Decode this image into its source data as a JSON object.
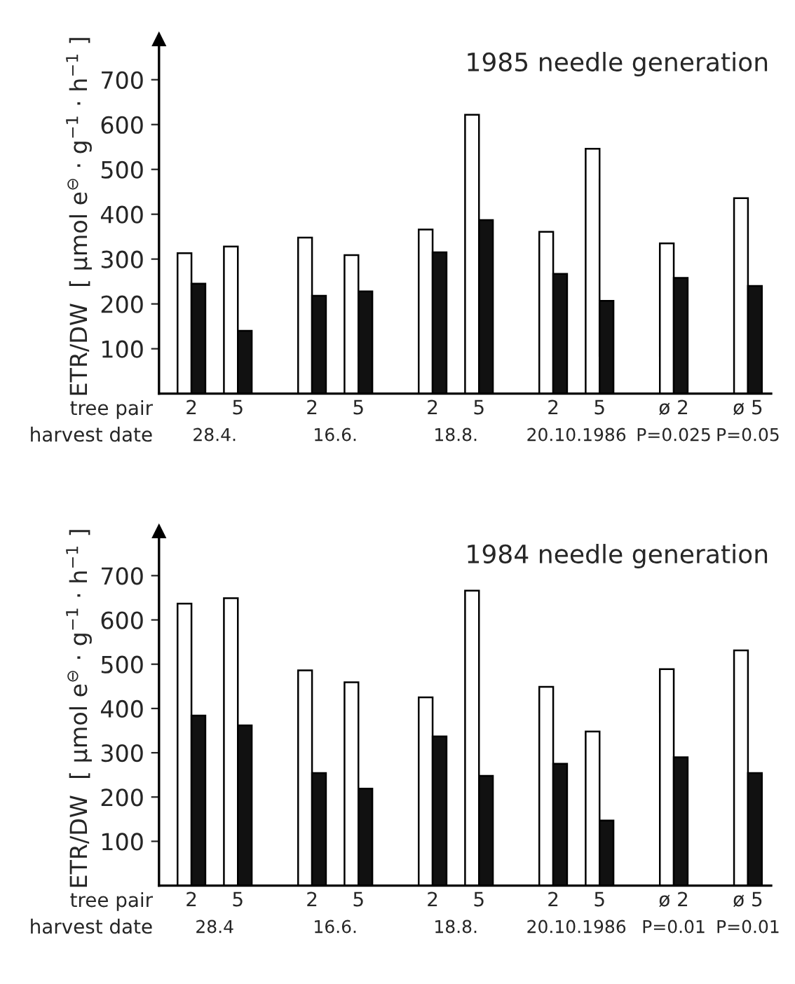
{
  "chart_data": [
    {
      "type": "bar",
      "title": "1985 needle generation",
      "ylabel": "ETR/DW  [ µmol e$^{⊖}$ · g$^{−1}$ · h$^{−1}$ ]",
      "categories": [
        "2",
        "5",
        "2",
        "5",
        "2",
        "5",
        "2",
        "5",
        "ø 2",
        "ø 5"
      ],
      "series": [
        {
          "color": "#ffffff",
          "values": [
            313,
            328,
            348,
            309,
            366,
            622,
            361,
            546,
            335,
            436
          ]
        },
        {
          "color": "#111111",
          "values": [
            245,
            140,
            218,
            228,
            315,
            387,
            267,
            207,
            258,
            240
          ]
        }
      ],
      "ylim": [
        0,
        790
      ],
      "yticks": [
        100,
        200,
        300,
        400,
        500,
        600,
        700
      ],
      "annotations": [
        "tree pair",
        "harvest date",
        "28.4.",
        "16.6.",
        "18.8.",
        "20.10.1986",
        "P=0.025",
        "P=0.05"
      ]
    },
    {
      "type": "bar",
      "title": "1984 needle generation",
      "ylabel": "ETR/DW  [ µmol e$^{⊖}$ · g$^{−1}$ · h$^{−1}$ ]",
      "categories": [
        "2",
        "5",
        "2",
        "5",
        "2",
        "5",
        "2",
        "5",
        "ø 2",
        "ø 5"
      ],
      "series": [
        {
          "color": "#ffffff",
          "values": [
            637,
            649,
            486,
            459,
            425,
            666,
            449,
            348,
            489,
            531
          ]
        },
        {
          "color": "#111111",
          "values": [
            384,
            362,
            254,
            219,
            337,
            248,
            275,
            147,
            290,
            254
          ]
        }
      ],
      "ylim": [
        0,
        800
      ],
      "yticks": [
        100,
        200,
        300,
        400,
        500,
        600,
        700
      ],
      "annotations": [
        "tree pair",
        "harvest date",
        "28.4",
        "16.6.",
        "18.8.",
        "20.10.1986",
        "P=0.01",
        "P=0.01"
      ]
    }
  ]
}
